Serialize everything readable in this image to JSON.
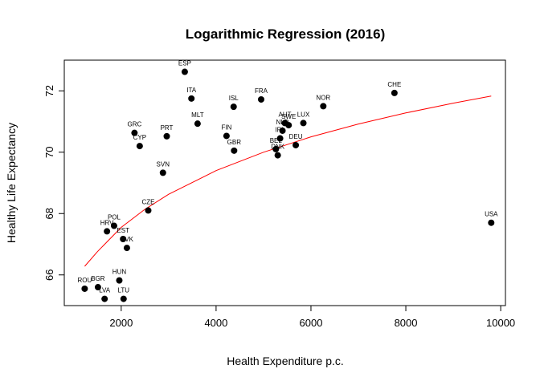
{
  "chart_data": {
    "type": "scatter",
    "title": "Logarithmic Regression (2016)",
    "xlabel": "Health Expenditure p.c.",
    "ylabel": "Healthy Life Expectancy",
    "xlim": [
      800,
      10100
    ],
    "ylim": [
      65.0,
      73.0
    ],
    "xticks": [
      2000,
      4000,
      6000,
      8000,
      10000
    ],
    "yticks": [
      66,
      68,
      70,
      72
    ],
    "grid": false,
    "legend": "none",
    "point_color": "#000000",
    "curve_color": "#ff0000",
    "points": [
      {
        "label": "ROU",
        "x": 1230,
        "y": 65.55
      },
      {
        "label": "BGR",
        "x": 1510,
        "y": 65.6
      },
      {
        "label": "LVA",
        "x": 1650,
        "y": 65.22
      },
      {
        "label": "LTU",
        "x": 2050,
        "y": 65.22
      },
      {
        "label": "HUN",
        "x": 1960,
        "y": 65.82
      },
      {
        "label": "HRV",
        "x": 1700,
        "y": 67.42
      },
      {
        "label": "POL",
        "x": 1850,
        "y": 67.6
      },
      {
        "label": "EST",
        "x": 2040,
        "y": 67.17
      },
      {
        "label": "SVK",
        "x": 2120,
        "y": 66.88
      },
      {
        "label": "CZE",
        "x": 2570,
        "y": 68.1
      },
      {
        "label": "SVN",
        "x": 2880,
        "y": 69.33
      },
      {
        "label": "GRC",
        "x": 2280,
        "y": 70.63
      },
      {
        "label": "CYP",
        "x": 2390,
        "y": 70.2
      },
      {
        "label": "PRT",
        "x": 2960,
        "y": 70.52
      },
      {
        "label": "ESP",
        "x": 3340,
        "y": 72.62
      },
      {
        "label": "ITA",
        "x": 3480,
        "y": 71.75
      },
      {
        "label": "MLT",
        "x": 3610,
        "y": 70.93
      },
      {
        "label": "ISL",
        "x": 4370,
        "y": 71.48
      },
      {
        "label": "FIN",
        "x": 4220,
        "y": 70.53
      },
      {
        "label": "GBR",
        "x": 4380,
        "y": 70.05
      },
      {
        "label": "FRA",
        "x": 4950,
        "y": 71.72
      },
      {
        "label": "BEL",
        "x": 5260,
        "y": 70.1
      },
      {
        "label": "DNK",
        "x": 5300,
        "y": 69.9
      },
      {
        "label": "IRL",
        "x": 5350,
        "y": 70.45
      },
      {
        "label": "NLD",
        "x": 5400,
        "y": 70.7
      },
      {
        "label": "AUT",
        "x": 5450,
        "y": 70.95
      },
      {
        "label": "SWE",
        "x": 5530,
        "y": 70.88
      },
      {
        "label": "DEU",
        "x": 5680,
        "y": 70.23
      },
      {
        "label": "LUX",
        "x": 5840,
        "y": 70.95
      },
      {
        "label": "NOR",
        "x": 6260,
        "y": 71.5
      },
      {
        "label": "CHE",
        "x": 7760,
        "y": 71.93
      },
      {
        "label": "USA",
        "x": 9800,
        "y": 67.7
      }
    ],
    "regression": {
      "type": "logarithmic",
      "x": [
        1230,
        1500,
        2000,
        2500,
        3000,
        4000,
        5000,
        6000,
        7000,
        8000,
        9000,
        9800
      ],
      "y": [
        66.28,
        66.76,
        67.55,
        68.14,
        68.63,
        69.4,
        70.0,
        70.5,
        70.92,
        71.28,
        71.6,
        71.83
      ]
    }
  }
}
